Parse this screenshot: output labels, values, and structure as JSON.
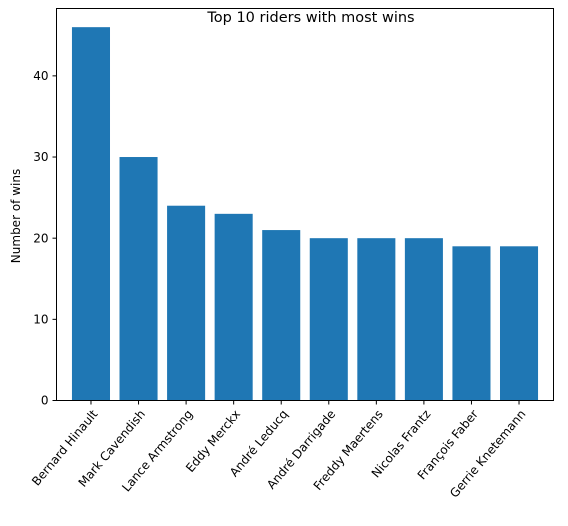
{
  "chart_data": {
    "type": "bar",
    "title": "Top 10 riders with most wins",
    "xlabel": "",
    "ylabel": "Number of wins",
    "categories": [
      "Bernard Hinault",
      "Mark Cavendish",
      "Lance Armstrong",
      "Eddy Merckx",
      "André Leducq",
      "André Darrigade",
      "Freddy Maertens",
      "Nicolas Frantz",
      "François Faber",
      "Gerrie Knetemann"
    ],
    "values": [
      46,
      30,
      24,
      23,
      21,
      20,
      20,
      20,
      19,
      19
    ],
    "ylim": [
      0,
      48.3
    ],
    "yticks": [
      0,
      10,
      20,
      30,
      40
    ],
    "bar_color": "#1f77b4",
    "grid": false,
    "x_tick_rotation": 50
  }
}
